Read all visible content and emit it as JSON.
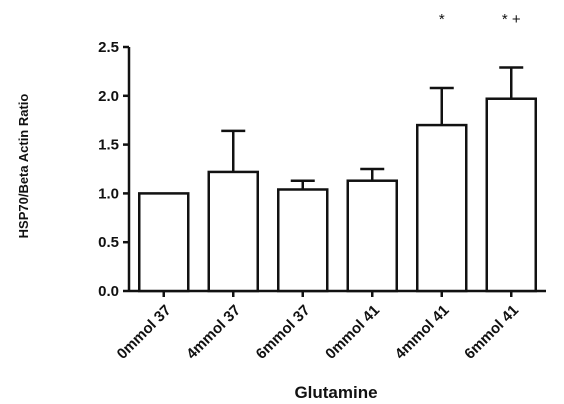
{
  "chart_data": {
    "type": "bar",
    "title": "",
    "xlabel": "Glutamine",
    "ylabel": "HSP70/Beta Actin Ratio",
    "categories": [
      "0mmol 37",
      "4mmol 37",
      "6mmol 37",
      "0mmol 41",
      "4mmol 41",
      "6mmol 41"
    ],
    "values": [
      1.0,
      1.22,
      1.04,
      1.13,
      1.7,
      1.97
    ],
    "error_upper": [
      0.0,
      0.42,
      0.09,
      0.12,
      0.38,
      0.32
    ],
    "annotations": [
      "",
      "",
      "",
      "",
      "*",
      "* +"
    ],
    "ylim": [
      0,
      2.5
    ],
    "yticks": [
      "0.0",
      "0.5",
      "1.0",
      "1.5",
      "2.0",
      "2.5"
    ],
    "grid": false,
    "legend": "none",
    "colors": {
      "bar_fill": "#ffffff",
      "bar_stroke": "#111111",
      "axis": "#111111"
    }
  }
}
